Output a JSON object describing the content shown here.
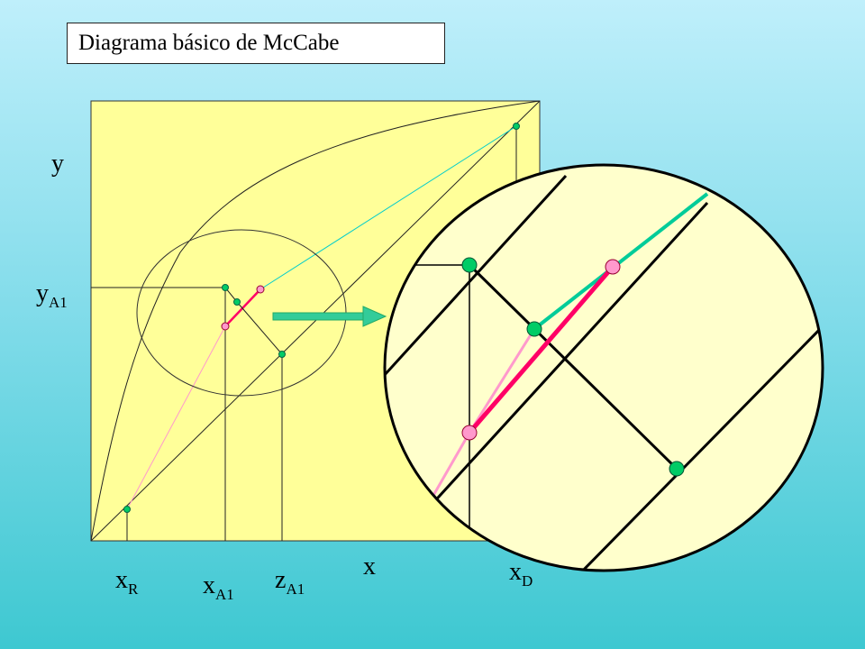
{
  "title": "Diagrama básico de McCabe",
  "labels": {
    "y_axis": "y",
    "x_axis": "x",
    "yA1_main": "y",
    "yA1_sub": "A1",
    "xR_main": "x",
    "xR_sub": "R",
    "xA1_main": "x",
    "xA1_sub": "A1",
    "zA1_main": "z",
    "zA1_sub": "A1",
    "xD_main": "x",
    "xD_sub": "D"
  },
  "colors": {
    "plot_background": "#ffff99",
    "zoom_background": "#ffffcc",
    "enriching_line": "#00cc99",
    "stripping_line": "#ff99cc",
    "highlight_segment": "#ff0066",
    "green_marker": "#00cc66",
    "pink_marker": "#ff99cc",
    "arrow": "#33cc99"
  }
}
